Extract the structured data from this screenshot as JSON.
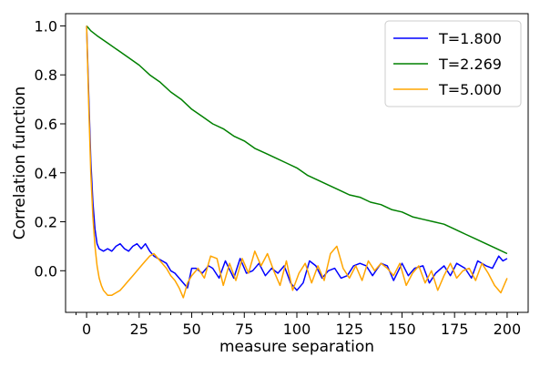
{
  "chart_data": {
    "type": "line",
    "title": "",
    "xlabel": "measure separation",
    "ylabel": "Correlation function",
    "xlim": [
      -10,
      210
    ],
    "ylim": [
      -0.17,
      1.05
    ],
    "xticks": [
      0,
      25,
      50,
      75,
      100,
      125,
      150,
      175,
      200
    ],
    "xtick_labels": [
      "0",
      "25",
      "50",
      "75",
      "100",
      "125",
      "150",
      "175",
      "200"
    ],
    "yticks": [
      0.0,
      0.2,
      0.4,
      0.6,
      0.8,
      1.0
    ],
    "ytick_labels": [
      "0.0",
      "0.2",
      "0.4",
      "0.6",
      "0.8",
      "1.0"
    ],
    "grid": false,
    "legend_position": "top-right",
    "series": [
      {
        "name": "T=1.800",
        "color": "#0000ff",
        "x": [
          0,
          1,
          2,
          3,
          4,
          5,
          6,
          8,
          10,
          12,
          14,
          16,
          18,
          20,
          22,
          24,
          26,
          28,
          30,
          32,
          34,
          36,
          38,
          40,
          42,
          44,
          46,
          48,
          50,
          52,
          55,
          58,
          60,
          63,
          66,
          70,
          73,
          76,
          79,
          82,
          85,
          88,
          91,
          94,
          97,
          100,
          103,
          106,
          109,
          112,
          115,
          118,
          121,
          124,
          127,
          130,
          133,
          136,
          140,
          143,
          146,
          150,
          153,
          156,
          160,
          163,
          166,
          170,
          173,
          176,
          180,
          183,
          186,
          190,
          193,
          196,
          198,
          200
        ],
        "y": [
          1.0,
          0.72,
          0.45,
          0.28,
          0.17,
          0.11,
          0.09,
          0.08,
          0.09,
          0.08,
          0.1,
          0.11,
          0.09,
          0.08,
          0.1,
          0.11,
          0.09,
          0.11,
          0.08,
          0.06,
          0.05,
          0.04,
          0.03,
          0.0,
          -0.01,
          -0.03,
          -0.05,
          -0.07,
          0.01,
          0.01,
          -0.01,
          0.02,
          0.01,
          -0.03,
          0.04,
          -0.03,
          0.05,
          -0.01,
          0.0,
          0.03,
          -0.02,
          0.01,
          -0.01,
          0.02,
          -0.05,
          -0.08,
          -0.05,
          0.04,
          0.02,
          -0.03,
          0.0,
          0.01,
          -0.03,
          -0.02,
          0.02,
          0.03,
          0.02,
          -0.02,
          0.03,
          0.02,
          -0.04,
          0.03,
          -0.02,
          0.01,
          0.02,
          -0.05,
          -0.01,
          0.02,
          -0.02,
          0.03,
          0.01,
          -0.03,
          0.04,
          0.02,
          0.01,
          0.06,
          0.04,
          0.05
        ]
      },
      {
        "name": "T=2.269",
        "color": "#008000",
        "x": [
          0,
          2,
          5,
          10,
          15,
          20,
          25,
          30,
          35,
          40,
          45,
          50,
          55,
          60,
          65,
          70,
          75,
          80,
          85,
          90,
          95,
          100,
          105,
          110,
          115,
          120,
          125,
          130,
          135,
          140,
          145,
          150,
          155,
          160,
          165,
          170,
          175,
          180,
          185,
          190,
          195,
          200
        ],
        "y": [
          1.0,
          0.98,
          0.96,
          0.93,
          0.9,
          0.87,
          0.84,
          0.8,
          0.77,
          0.73,
          0.7,
          0.66,
          0.63,
          0.6,
          0.58,
          0.55,
          0.53,
          0.5,
          0.48,
          0.46,
          0.44,
          0.42,
          0.39,
          0.37,
          0.35,
          0.33,
          0.31,
          0.3,
          0.28,
          0.27,
          0.25,
          0.24,
          0.22,
          0.21,
          0.2,
          0.19,
          0.17,
          0.15,
          0.13,
          0.11,
          0.09,
          0.07
        ]
      },
      {
        "name": "T=5.000",
        "color": "#ffa500",
        "x": [
          0,
          1,
          2,
          3,
          4,
          5,
          6,
          7,
          8,
          10,
          12,
          14,
          16,
          18,
          20,
          22,
          24,
          26,
          28,
          30,
          32,
          34,
          36,
          38,
          40,
          42,
          44,
          46,
          48,
          50,
          53,
          56,
          59,
          62,
          65,
          68,
          71,
          74,
          77,
          80,
          83,
          86,
          89,
          92,
          95,
          98,
          101,
          104,
          107,
          110,
          113,
          116,
          119,
          122,
          125,
          128,
          131,
          134,
          137,
          140,
          143,
          146,
          149,
          152,
          155,
          158,
          161,
          164,
          167,
          170,
          173,
          176,
          179,
          182,
          185,
          188,
          191,
          194,
          197,
          200
        ],
        "y": [
          1.0,
          0.68,
          0.4,
          0.22,
          0.1,
          0.02,
          -0.03,
          -0.06,
          -0.08,
          -0.1,
          -0.1,
          -0.09,
          -0.08,
          -0.06,
          -0.04,
          -0.02,
          0.0,
          0.02,
          0.04,
          0.06,
          0.07,
          0.05,
          0.03,
          0.01,
          -0.02,
          -0.04,
          -0.07,
          -0.11,
          -0.05,
          -0.02,
          0.01,
          -0.03,
          0.06,
          0.05,
          -0.06,
          0.03,
          -0.04,
          0.05,
          -0.01,
          0.08,
          0.02,
          0.07,
          0.0,
          -0.06,
          0.04,
          -0.08,
          -0.01,
          0.03,
          -0.05,
          0.02,
          -0.04,
          0.07,
          0.1,
          0.01,
          -0.03,
          0.02,
          -0.04,
          0.04,
          0.0,
          0.03,
          0.01,
          -0.02,
          0.03,
          -0.06,
          -0.01,
          0.02,
          -0.05,
          0.0,
          -0.08,
          -0.02,
          0.03,
          -0.03,
          0.0,
          0.01,
          -0.04,
          0.03,
          -0.01,
          -0.06,
          -0.09,
          -0.03
        ]
      }
    ]
  }
}
